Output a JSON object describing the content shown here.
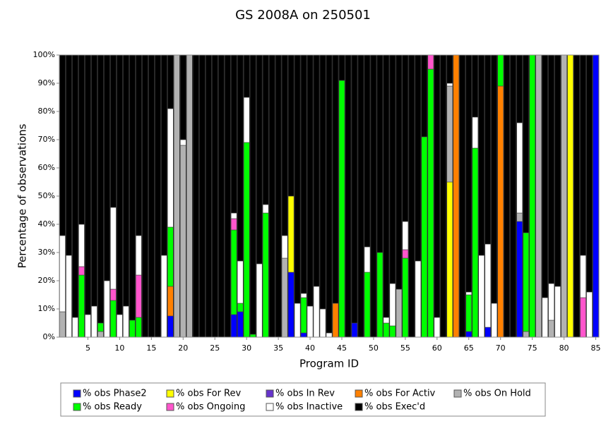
{
  "chart_data": {
    "type": "stacked_bar",
    "title": "GS 2008A on 250501",
    "x_label": "Program ID",
    "y_label": "Percentage of observations",
    "x": [
      1,
      2,
      3,
      4,
      5,
      6,
      7,
      8,
      9,
      10,
      11,
      12,
      13,
      14,
      15,
      16,
      17,
      18,
      19,
      20,
      21,
      22,
      23,
      24,
      25,
      26,
      27,
      28,
      29,
      30,
      31,
      32,
      33,
      34,
      35,
      36,
      37,
      38,
      39,
      40,
      41,
      42,
      43,
      44,
      45,
      46,
      47,
      48,
      49,
      50,
      51,
      52,
      53,
      54,
      55,
      56,
      57,
      58,
      59,
      60,
      61,
      62,
      63,
      64,
      65,
      66,
      67,
      68,
      69,
      70,
      71,
      72,
      73,
      74,
      75,
      76,
      77,
      78,
      79,
      80,
      81,
      82,
      83,
      84,
      85
    ],
    "xlim": [
      0.5,
      85.5
    ],
    "xticks": [
      5,
      10,
      15,
      20,
      25,
      30,
      35,
      40,
      45,
      50,
      55,
      60,
      65,
      70,
      75,
      80,
      85
    ],
    "ylim": [
      0,
      100
    ],
    "yticks": [
      {
        "value": 0,
        "label": "0%"
      },
      {
        "value": 10,
        "label": "10%"
      },
      {
        "value": 20,
        "label": "20%"
      },
      {
        "value": 30,
        "label": "30%"
      },
      {
        "value": 40,
        "label": "40%"
      },
      {
        "value": 50,
        "label": "50%"
      },
      {
        "value": 60,
        "label": "60%"
      },
      {
        "value": 70,
        "label": "70%"
      },
      {
        "value": 80,
        "label": "80%"
      },
      {
        "value": 90,
        "label": "90%"
      },
      {
        "value": 100,
        "label": "100%"
      }
    ],
    "series": [
      {
        "name": "% obs Phase2",
        "color": "#0000ff",
        "values": [
          0,
          0,
          0,
          0,
          0,
          0,
          0,
          0,
          0,
          0,
          0,
          0,
          0,
          0,
          0,
          0,
          0,
          7.5,
          0,
          0,
          0,
          0,
          0,
          0,
          0,
          0,
          0,
          8,
          9,
          0,
          0,
          0,
          0,
          0,
          0,
          0,
          23,
          0,
          1.5,
          0,
          0,
          0,
          0,
          0,
          0,
          0,
          5,
          0,
          0,
          0,
          0,
          0,
          0,
          0,
          0,
          0,
          0,
          0,
          0,
          0,
          0,
          0,
          0,
          0,
          2,
          0,
          0,
          3.5,
          0,
          0,
          0,
          0,
          41,
          0,
          0,
          0,
          0,
          0,
          0,
          0,
          0,
          0,
          0,
          0,
          100
        ]
      },
      {
        "name": "% obs For Rev",
        "color": "#ffff00",
        "values": [
          0,
          0,
          0,
          0,
          0,
          0,
          0,
          0,
          0,
          0,
          0,
          0,
          0,
          0,
          0,
          0,
          0,
          0,
          0,
          0,
          0,
          0,
          0,
          0,
          0,
          0,
          0,
          0,
          0,
          0,
          0,
          0,
          0,
          0,
          0,
          0,
          27,
          0,
          0,
          0,
          0,
          0,
          0,
          0,
          0,
          0,
          0,
          0,
          0,
          0,
          0,
          0,
          0,
          0,
          0,
          0,
          0,
          0,
          0,
          0,
          0,
          55,
          0,
          0,
          0,
          0,
          0,
          0,
          0,
          0,
          0,
          0,
          0,
          0,
          0,
          0,
          0,
          0,
          0,
          0,
          100,
          0,
          0,
          0,
          0
        ]
      },
      {
        "name": "% obs In Rev",
        "color": "#6633cc",
        "values": [
          0,
          0,
          0,
          0,
          0,
          0,
          0,
          0,
          0,
          0,
          0,
          0,
          0,
          0,
          0,
          0,
          0,
          0,
          0,
          0,
          0,
          0,
          0,
          0,
          0,
          0,
          0,
          0,
          0,
          0,
          0,
          0,
          0,
          0,
          0,
          0,
          0,
          0,
          0,
          0,
          0,
          0,
          0,
          0,
          0,
          0,
          0,
          0,
          0,
          0,
          0,
          0,
          0,
          0,
          0,
          0,
          0,
          0,
          0,
          0,
          0,
          0,
          0,
          0,
          0,
          0,
          0,
          0,
          0,
          0,
          0,
          0,
          0,
          0,
          0,
          0,
          0,
          0,
          0,
          0,
          0,
          0,
          0,
          0,
          0
        ]
      },
      {
        "name": "% obs For Activ",
        "color": "#ff8000",
        "values": [
          0,
          0,
          0,
          0,
          0,
          0,
          0,
          0,
          0,
          0,
          0,
          0,
          0,
          0,
          0,
          0,
          0,
          10.5,
          0,
          0,
          0,
          0,
          0,
          0,
          0,
          0,
          0,
          0,
          0,
          0,
          0,
          0,
          0,
          0,
          0,
          0,
          0,
          0,
          0,
          0,
          0,
          0,
          0,
          12,
          0,
          0,
          0,
          0,
          0,
          0,
          0,
          0,
          0,
          0,
          0,
          0,
          0,
          0,
          0,
          0,
          0,
          0,
          100,
          0,
          0,
          0,
          0,
          0,
          0,
          89,
          0,
          0,
          0,
          0,
          0,
          0,
          0,
          0,
          0,
          0,
          0,
          0,
          0,
          0,
          0
        ]
      },
      {
        "name": "% obs On Hold",
        "color": "#b2b2b2",
        "values": [
          9,
          0,
          0,
          0,
          0,
          0,
          2,
          0,
          0,
          0,
          0,
          0,
          0,
          0,
          0,
          0,
          0,
          0,
          100,
          68,
          100,
          0,
          0,
          0,
          0,
          0,
          0,
          0,
          0,
          0,
          0,
          0,
          0,
          0,
          0,
          28,
          0,
          0,
          0,
          0,
          0,
          0,
          0,
          0,
          0,
          0,
          0,
          0,
          0,
          0,
          0,
          0,
          0,
          17,
          0,
          0,
          0,
          0,
          0,
          0,
          0,
          34,
          0,
          0,
          0,
          0,
          0,
          0,
          0,
          0,
          0,
          0,
          3,
          2,
          0,
          100,
          0,
          6,
          0,
          100,
          0,
          0,
          0,
          0,
          0
        ]
      },
      {
        "name": "% obs Ready",
        "color": "#00ff00",
        "values": [
          0,
          0,
          0,
          22,
          0,
          0,
          3,
          0,
          13,
          0,
          0,
          6,
          7,
          0,
          0,
          0,
          0,
          21,
          0,
          0,
          0,
          0,
          0,
          0,
          0,
          0,
          0,
          30,
          3,
          69,
          1,
          0,
          44,
          0,
          0,
          0,
          0,
          0,
          12.5,
          0,
          0,
          0,
          0,
          0,
          91,
          0,
          0,
          0,
          23,
          0,
          30,
          5,
          4,
          0,
          28,
          0,
          0,
          71,
          95,
          0,
          0,
          0,
          0,
          0,
          13,
          67,
          0,
          0,
          0,
          11,
          0,
          0,
          0,
          35,
          100,
          0,
          0,
          0,
          0,
          0,
          0,
          0,
          0,
          0,
          0
        ]
      },
      {
        "name": "% obs Ongoing",
        "color": "#ff55cc",
        "values": [
          0,
          0,
          0,
          3,
          0,
          0,
          0,
          0,
          4,
          0,
          0,
          0,
          15,
          0,
          0,
          0,
          0,
          0,
          0,
          0,
          0,
          0,
          0,
          0,
          0,
          0,
          0,
          4,
          0,
          0,
          0,
          0,
          0,
          0,
          0,
          0,
          0,
          0,
          0,
          0,
          0,
          0,
          0,
          0,
          0,
          0,
          0,
          0,
          0,
          0,
          0,
          0,
          0,
          0,
          3,
          0,
          0,
          0,
          5,
          0,
          0,
          0,
          0,
          0,
          0,
          0,
          0,
          0,
          0,
          0,
          0,
          0,
          0,
          0,
          0,
          0,
          0,
          0,
          0,
          0,
          0,
          0,
          14,
          0,
          0
        ]
      },
      {
        "name": "% obs Inactive",
        "color": "#ffffff",
        "values": [
          27,
          29,
          7,
          15,
          8,
          11,
          0,
          20,
          29,
          8,
          11,
          0,
          14,
          0,
          0,
          0,
          29,
          42,
          0,
          2,
          0,
          0,
          0,
          0,
          0,
          0,
          0,
          2,
          15,
          16,
          0,
          26,
          3,
          0,
          0,
          8,
          0,
          12,
          1.5,
          11,
          18,
          10,
          1.5,
          0,
          0,
          0,
          0,
          0,
          9,
          0,
          0,
          2,
          15,
          0,
          10,
          0,
          27,
          0,
          0,
          7,
          0,
          1,
          0,
          0,
          1,
          11,
          29,
          29.5,
          12,
          0,
          0,
          0,
          32,
          0,
          0,
          0,
          14,
          13,
          18,
          0,
          0,
          0,
          15,
          16,
          0
        ]
      },
      {
        "name": "% obs Exec'd",
        "color": "#000000",
        "values": [
          64,
          71,
          93,
          60,
          92,
          89,
          95,
          80,
          54,
          92,
          89,
          94,
          64,
          100,
          100,
          100,
          71,
          19,
          0,
          30,
          0,
          100,
          100,
          100,
          100,
          100,
          100,
          56,
          73,
          15,
          99,
          74,
          53,
          100,
          100,
          64,
          50,
          88,
          84.5,
          89,
          82,
          90,
          98.5,
          88,
          9,
          100,
          95,
          100,
          68,
          100,
          70,
          93,
          81,
          83,
          59,
          100,
          73,
          29,
          0,
          93,
          100,
          10,
          0,
          100,
          84,
          22,
          71,
          67,
          88,
          0,
          100,
          100,
          24,
          63,
          0,
          0,
          86,
          81,
          82,
          0,
          0,
          100,
          71,
          84,
          0
        ]
      }
    ]
  }
}
